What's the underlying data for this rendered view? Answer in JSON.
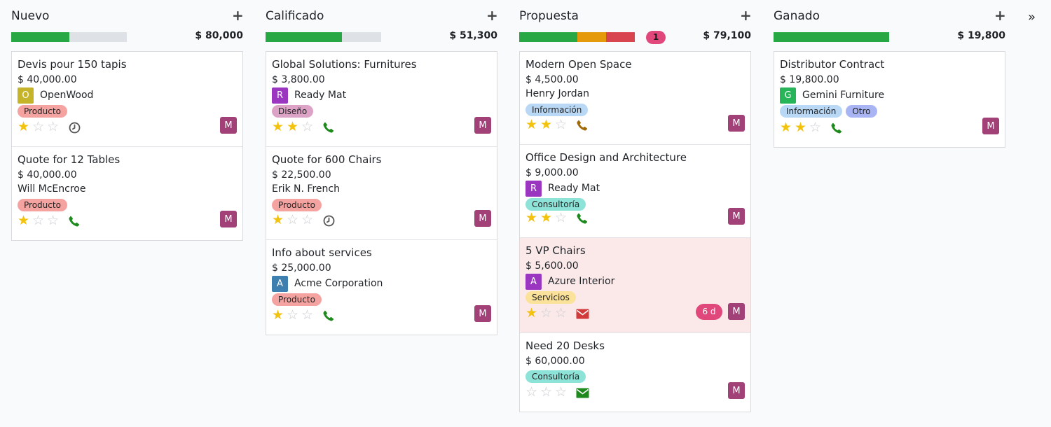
{
  "fold_label": "»",
  "columns": [
    {
      "title": "Nuevo",
      "add_icon": "plus-icon",
      "add_label": "+",
      "total": "$ 80,000",
      "progress": [
        {
          "color": "#28a745",
          "value": 0.5
        }
      ],
      "overdue_count": "",
      "cards": [
        {
          "title": "Devis pour 150 tapis",
          "amount": "$ 40,000.00",
          "partner": "OpenWood",
          "partner_initial": "O",
          "partner_color": "#c5b42a",
          "contact": "",
          "tags": [
            {
              "label": "Producto",
              "color": "#f5a3a0"
            }
          ],
          "stars": 1,
          "activity": "clock-icon",
          "activity_color": "#555555",
          "days_late": "",
          "user_initial": "M",
          "late": false
        },
        {
          "title": "Quote for 12 Tables",
          "amount": "$ 40,000.00",
          "partner": "",
          "partner_initial": "",
          "partner_color": "",
          "contact": "Will McEncroe",
          "tags": [
            {
              "label": "Producto",
              "color": "#f5a3a0"
            }
          ],
          "stars": 1,
          "activity": "phone-icon",
          "activity_color": "#1e8a1e",
          "days_late": "",
          "user_initial": "M",
          "late": false
        }
      ]
    },
    {
      "title": "Calificado",
      "add_icon": "plus-icon",
      "add_label": "+",
      "total": "$ 51,300",
      "progress": [
        {
          "color": "#28a745",
          "value": 0.66
        }
      ],
      "overdue_count": "",
      "cards": [
        {
          "title": "Global Solutions: Furnitures",
          "amount": "$ 3,800.00",
          "partner": "Ready Mat",
          "partner_initial": "R",
          "partner_color": "#9b36c0",
          "contact": "",
          "tags": [
            {
              "label": "Diseño",
              "color": "#dca3c6"
            }
          ],
          "stars": 2,
          "activity": "phone-icon",
          "activity_color": "#1e8a1e",
          "days_late": "",
          "user_initial": "M",
          "late": false
        },
        {
          "title": "Quote for 600 Chairs",
          "amount": "$ 22,500.00",
          "partner": "",
          "partner_initial": "",
          "partner_color": "",
          "contact": "Erik N. French",
          "tags": [
            {
              "label": "Producto",
              "color": "#f5a3a0"
            }
          ],
          "stars": 1,
          "activity": "clock-icon",
          "activity_color": "#555555",
          "days_late": "",
          "user_initial": "M",
          "late": false
        },
        {
          "title": "Info about services",
          "amount": "$ 25,000.00",
          "partner": "Acme Corporation",
          "partner_initial": "A",
          "partner_color": "#3d7fae",
          "contact": "",
          "tags": [
            {
              "label": "Producto",
              "color": "#f5a3a0"
            }
          ],
          "stars": 1,
          "activity": "phone-icon",
          "activity_color": "#1e8a1e",
          "days_late": "",
          "user_initial": "M",
          "late": false
        }
      ]
    },
    {
      "title": "Propuesta",
      "add_icon": "plus-icon",
      "add_label": "+",
      "total": "$ 79,100",
      "progress": [
        {
          "color": "#28a745",
          "value": 0.5
        },
        {
          "color": "#e59a0c",
          "value": 0.25
        },
        {
          "color": "#d9454f",
          "value": 0.25
        }
      ],
      "overdue_count": "1",
      "cards": [
        {
          "title": "Modern Open Space",
          "amount": "$ 4,500.00",
          "partner": "",
          "partner_initial": "",
          "partner_color": "",
          "contact": "Henry Jordan",
          "tags": [
            {
              "label": "Información",
              "color": "#b9d8f5"
            }
          ],
          "stars": 2,
          "activity": "phone-icon",
          "activity_color": "#a0690b",
          "days_late": "",
          "user_initial": "M",
          "late": false
        },
        {
          "title": "Office Design and Architecture",
          "amount": "$ 9,000.00",
          "partner": "Ready Mat",
          "partner_initial": "R",
          "partner_color": "#9b36c0",
          "contact": "",
          "tags": [
            {
              "label": "Consultoría",
              "color": "#8de3d8"
            }
          ],
          "stars": 2,
          "activity": "phone-icon",
          "activity_color": "#1e8a1e",
          "days_late": "",
          "user_initial": "M",
          "late": false
        },
        {
          "title": "5 VP Chairs",
          "amount": "$ 5,600.00",
          "partner": "Azure Interior",
          "partner_initial": "A",
          "partner_color": "#9b36c0",
          "contact": "",
          "tags": [
            {
              "label": "Servicios",
              "color": "#fbe29a"
            }
          ],
          "stars": 1,
          "activity": "envelope-icon",
          "activity_color": "#d13b3b",
          "days_late": "6 d",
          "user_initial": "M",
          "late": true
        },
        {
          "title": "Need 20 Desks",
          "amount": "$ 60,000.00",
          "partner": "",
          "partner_initial": "",
          "partner_color": "",
          "contact": "",
          "tags": [
            {
              "label": "Consultoría",
              "color": "#8de3d8"
            }
          ],
          "stars": 0,
          "activity": "envelope-icon",
          "activity_color": "#1e8a1e",
          "days_late": "",
          "user_initial": "M",
          "late": false
        }
      ]
    },
    {
      "title": "Ganado",
      "add_icon": "plus-icon",
      "add_label": "+",
      "total": "$ 19,800",
      "progress": [
        {
          "color": "#28a745",
          "value": 1.0
        }
      ],
      "overdue_count": "",
      "cards": [
        {
          "title": "Distributor Contract",
          "amount": "$ 19,800.00",
          "partner": "Gemini Furniture",
          "partner_initial": "G",
          "partner_color": "#27b55a",
          "contact": "",
          "tags": [
            {
              "label": "Información",
              "color": "#b9d8f5"
            },
            {
              "label": "Otro",
              "color": "#a9b4f5"
            }
          ],
          "stars": 2,
          "activity": "phone-icon",
          "activity_color": "#1e8a1e",
          "days_late": "",
          "user_initial": "M",
          "late": false
        }
      ]
    }
  ]
}
